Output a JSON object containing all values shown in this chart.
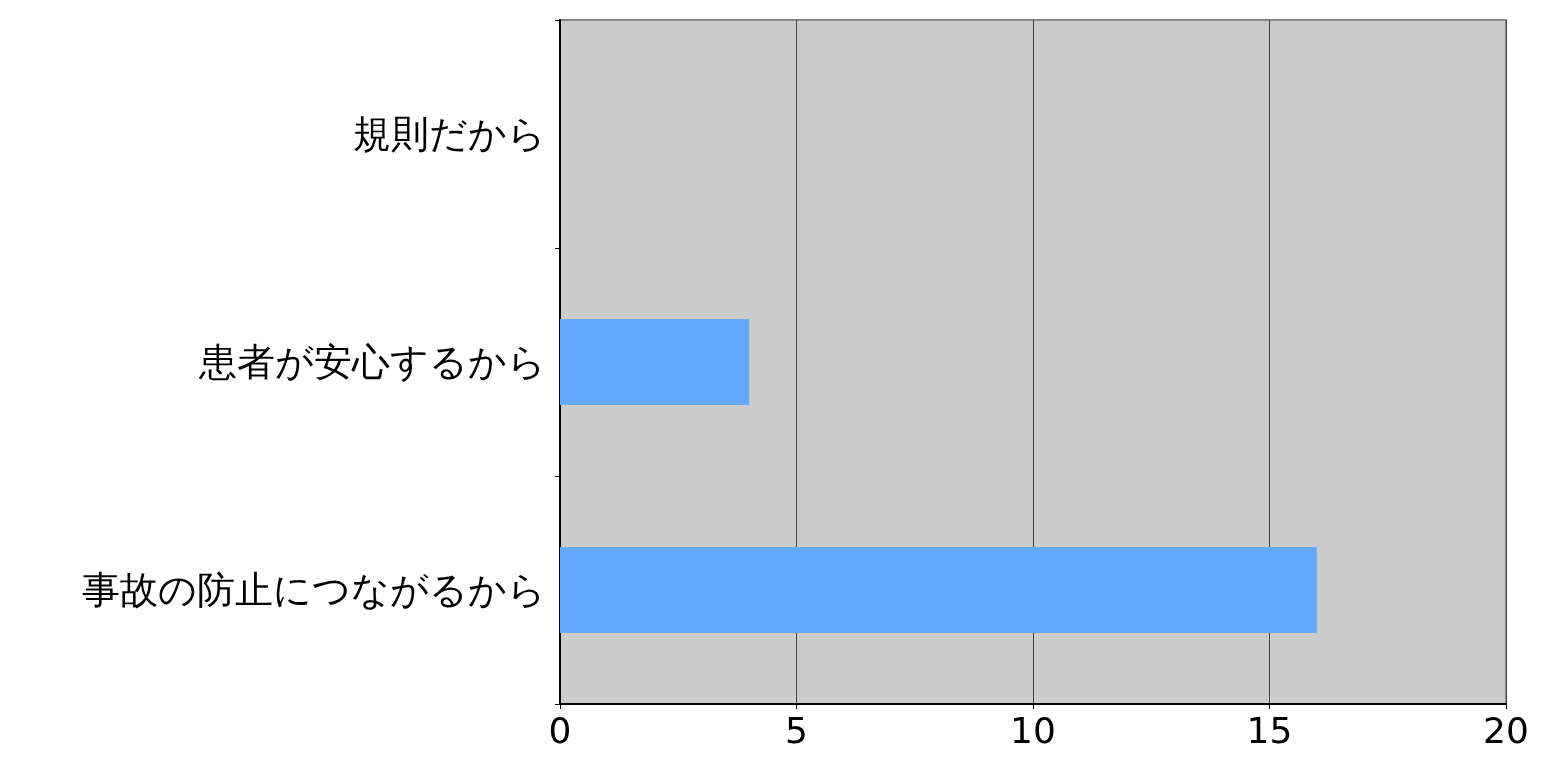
{
  "chart_data": {
    "type": "bar",
    "orientation": "horizontal",
    "categories": [
      "規則だから",
      "患者が安心するから",
      "事故の防止につながるから"
    ],
    "values": [
      0,
      4,
      16
    ],
    "color": "#63a9fd",
    "xlim": [
      0,
      20
    ],
    "xticks": [
      0,
      5,
      10,
      15,
      20
    ],
    "grid": "x"
  }
}
